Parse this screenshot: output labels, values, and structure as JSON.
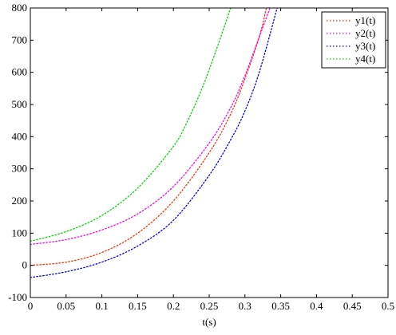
{
  "chart_data": {
    "type": "line",
    "title": "",
    "xlabel": "t(s)",
    "ylabel": "",
    "xlim": [
      0,
      0.5
    ],
    "ylim": [
      -100,
      800
    ],
    "xticks": [
      0,
      0.05,
      0.1,
      0.15,
      0.2,
      0.25,
      0.3,
      0.35,
      0.4,
      0.45,
      0.5
    ],
    "xtick_labels": [
      "0",
      "0.05",
      "0.1",
      "0.15",
      "0.2",
      "0.25",
      "0.3",
      "0.35",
      "0.4",
      "0.45",
      "0.5"
    ],
    "yticks": [
      -100,
      0,
      100,
      200,
      300,
      400,
      500,
      600,
      700,
      800
    ],
    "ytick_labels": [
      "-100",
      "0",
      "100",
      "200",
      "300",
      "400",
      "500",
      "600",
      "700",
      "800"
    ],
    "grid": false,
    "legend_position": "top-right",
    "line_style": "dotted",
    "series": [
      {
        "name": "y1(t)",
        "color": "#ff3300",
        "x": [
          0,
          0.05,
          0.1,
          0.15,
          0.2,
          0.25,
          0.28,
          0.3,
          0.32,
          0.33
        ],
        "y": [
          0,
          10,
          40,
          100,
          200,
          350,
          470,
          580,
          710,
          800
        ]
      },
      {
        "name": "y2(t)",
        "color": "#ff00ff",
        "x": [
          0,
          0.05,
          0.1,
          0.15,
          0.2,
          0.25,
          0.28,
          0.3,
          0.32,
          0.335
        ],
        "y": [
          65,
          80,
          110,
          160,
          245,
          380,
          490,
          590,
          710,
          800
        ]
      },
      {
        "name": "y3(t)",
        "color": "#0000ff",
        "x": [
          0,
          0.05,
          0.1,
          0.15,
          0.2,
          0.25,
          0.28,
          0.3,
          0.32,
          0.345
        ],
        "y": [
          -38,
          -20,
          10,
          60,
          140,
          280,
          390,
          480,
          600,
          800
        ]
      },
      {
        "name": "y4(t)",
        "color": "#00dd00",
        "x": [
          0,
          0.05,
          0.1,
          0.15,
          0.2,
          0.22,
          0.24,
          0.26,
          0.28
        ],
        "y": [
          75,
          105,
          155,
          240,
          370,
          450,
          550,
          670,
          800
        ]
      }
    ]
  }
}
